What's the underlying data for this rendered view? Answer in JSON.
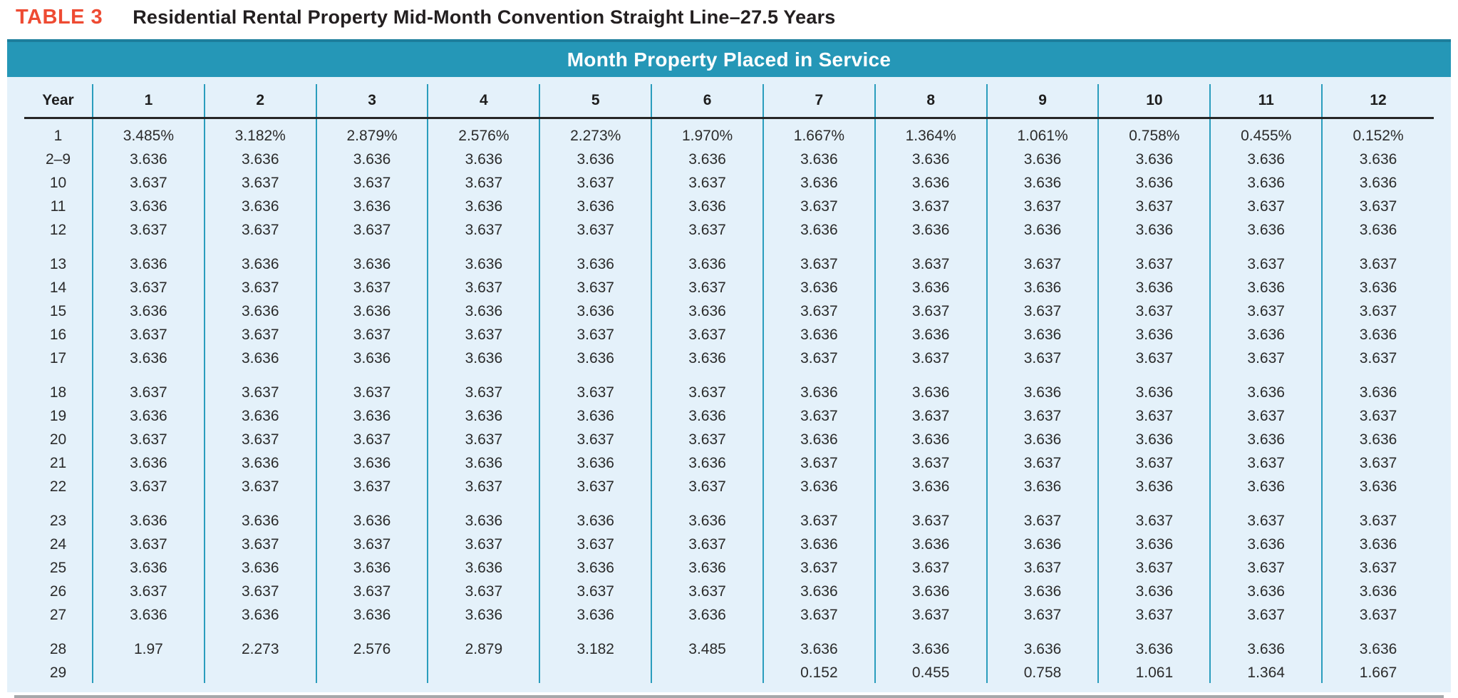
{
  "header": {
    "label": "TABLE 3",
    "title": "Residential Rental Property Mid-Month Convention Straight Line–27.5 Years"
  },
  "band": {
    "title": "Month Property Placed in Service"
  },
  "table": {
    "year_header": "Year",
    "month_headers": [
      "1",
      "2",
      "3",
      "4",
      "5",
      "6",
      "7",
      "8",
      "9",
      "10",
      "11",
      "12"
    ],
    "rows": [
      {
        "year": "1",
        "group_start": false,
        "values": [
          "3.485%",
          "3.182%",
          "2.879%",
          "2.576%",
          "2.273%",
          "1.970%",
          "1.667%",
          "1.364%",
          "1.061%",
          "0.758%",
          "0.455%",
          "0.152%"
        ]
      },
      {
        "year": "2–9",
        "group_start": false,
        "values": [
          "3.636",
          "3.636",
          "3.636",
          "3.636",
          "3.636",
          "3.636",
          "3.636",
          "3.636",
          "3.636",
          "3.636",
          "3.636",
          "3.636"
        ]
      },
      {
        "year": "10",
        "group_start": false,
        "values": [
          "3.637",
          "3.637",
          "3.637",
          "3.637",
          "3.637",
          "3.637",
          "3.636",
          "3.636",
          "3.636",
          "3.636",
          "3.636",
          "3.636"
        ]
      },
      {
        "year": "11",
        "group_start": false,
        "values": [
          "3.636",
          "3.636",
          "3.636",
          "3.636",
          "3.636",
          "3.636",
          "3.637",
          "3.637",
          "3.637",
          "3.637",
          "3.637",
          "3.637"
        ]
      },
      {
        "year": "12",
        "group_start": false,
        "values": [
          "3.637",
          "3.637",
          "3.637",
          "3.637",
          "3.637",
          "3.637",
          "3.636",
          "3.636",
          "3.636",
          "3.636",
          "3.636",
          "3.636"
        ]
      },
      {
        "year": "13",
        "group_start": true,
        "values": [
          "3.636",
          "3.636",
          "3.636",
          "3.636",
          "3.636",
          "3.636",
          "3.637",
          "3.637",
          "3.637",
          "3.637",
          "3.637",
          "3.637"
        ]
      },
      {
        "year": "14",
        "group_start": false,
        "values": [
          "3.637",
          "3.637",
          "3.637",
          "3.637",
          "3.637",
          "3.637",
          "3.636",
          "3.636",
          "3.636",
          "3.636",
          "3.636",
          "3.636"
        ]
      },
      {
        "year": "15",
        "group_start": false,
        "values": [
          "3.636",
          "3.636",
          "3.636",
          "3.636",
          "3.636",
          "3.636",
          "3.637",
          "3.637",
          "3.637",
          "3.637",
          "3.637",
          "3.637"
        ]
      },
      {
        "year": "16",
        "group_start": false,
        "values": [
          "3.637",
          "3.637",
          "3.637",
          "3.637",
          "3.637",
          "3.637",
          "3.636",
          "3.636",
          "3.636",
          "3.636",
          "3.636",
          "3.636"
        ]
      },
      {
        "year": "17",
        "group_start": false,
        "values": [
          "3.636",
          "3.636",
          "3.636",
          "3.636",
          "3.636",
          "3.636",
          "3.637",
          "3.637",
          "3.637",
          "3.637",
          "3.637",
          "3.637"
        ]
      },
      {
        "year": "18",
        "group_start": true,
        "values": [
          "3.637",
          "3.637",
          "3.637",
          "3.637",
          "3.637",
          "3.637",
          "3.636",
          "3.636",
          "3.636",
          "3.636",
          "3.636",
          "3.636"
        ]
      },
      {
        "year": "19",
        "group_start": false,
        "values": [
          "3.636",
          "3.636",
          "3.636",
          "3.636",
          "3.636",
          "3.636",
          "3.637",
          "3.637",
          "3.637",
          "3.637",
          "3.637",
          "3.637"
        ]
      },
      {
        "year": "20",
        "group_start": false,
        "values": [
          "3.637",
          "3.637",
          "3.637",
          "3.637",
          "3.637",
          "3.637",
          "3.636",
          "3.636",
          "3.636",
          "3.636",
          "3.636",
          "3.636"
        ]
      },
      {
        "year": "21",
        "group_start": false,
        "values": [
          "3.636",
          "3.636",
          "3.636",
          "3.636",
          "3.636",
          "3.636",
          "3.637",
          "3.637",
          "3.637",
          "3.637",
          "3.637",
          "3.637"
        ]
      },
      {
        "year": "22",
        "group_start": false,
        "values": [
          "3.637",
          "3.637",
          "3.637",
          "3.637",
          "3.637",
          "3.637",
          "3.636",
          "3.636",
          "3.636",
          "3.636",
          "3.636",
          "3.636"
        ]
      },
      {
        "year": "23",
        "group_start": true,
        "values": [
          "3.636",
          "3.636",
          "3.636",
          "3.636",
          "3.636",
          "3.636",
          "3.637",
          "3.637",
          "3.637",
          "3.637",
          "3.637",
          "3.637"
        ]
      },
      {
        "year": "24",
        "group_start": false,
        "values": [
          "3.637",
          "3.637",
          "3.637",
          "3.637",
          "3.637",
          "3.637",
          "3.636",
          "3.636",
          "3.636",
          "3.636",
          "3.636",
          "3.636"
        ]
      },
      {
        "year": "25",
        "group_start": false,
        "values": [
          "3.636",
          "3.636",
          "3.636",
          "3.636",
          "3.636",
          "3.636",
          "3.637",
          "3.637",
          "3.637",
          "3.637",
          "3.637",
          "3.637"
        ]
      },
      {
        "year": "26",
        "group_start": false,
        "values": [
          "3.637",
          "3.637",
          "3.637",
          "3.637",
          "3.637",
          "3.637",
          "3.636",
          "3.636",
          "3.636",
          "3.636",
          "3.636",
          "3.636"
        ]
      },
      {
        "year": "27",
        "group_start": false,
        "values": [
          "3.636",
          "3.636",
          "3.636",
          "3.636",
          "3.636",
          "3.636",
          "3.637",
          "3.637",
          "3.637",
          "3.637",
          "3.637",
          "3.637"
        ]
      },
      {
        "year": "28",
        "group_start": true,
        "values": [
          "1.97",
          "2.273",
          "2.576",
          "2.879",
          "3.182",
          "3.485",
          "3.636",
          "3.636",
          "3.636",
          "3.636",
          "3.636",
          "3.636"
        ]
      },
      {
        "year": "29",
        "group_start": false,
        "values": [
          "",
          "",
          "",
          "",
          "",
          "",
          "0.152",
          "0.455",
          "0.758",
          "1.061",
          "1.364",
          "1.667"
        ]
      }
    ]
  },
  "colors": {
    "accent-red": "#ee4b33",
    "band-teal": "#2597b7",
    "band-top": "#1d7e9c",
    "body-blue": "#e4f1fa",
    "line-teal": "#2a9dbd",
    "rule-black": "#262626",
    "bar-gray": "#a6a8ab"
  }
}
